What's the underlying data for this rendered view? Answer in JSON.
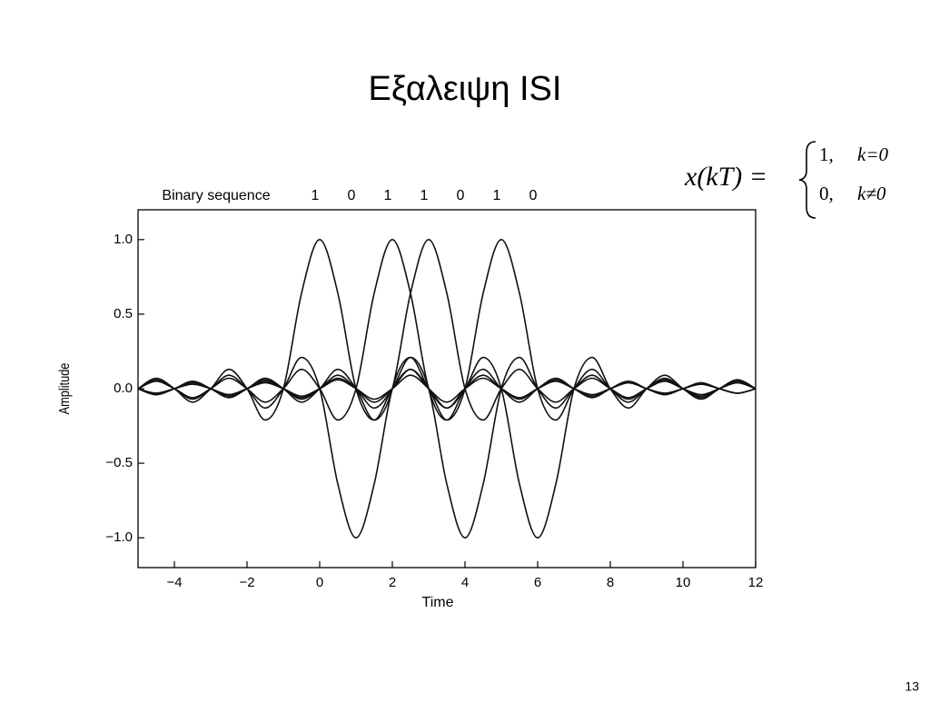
{
  "title": "Εξαλειψη ISI",
  "page_number": "13",
  "formula": {
    "lhs": "x(kT) =",
    "cases": [
      {
        "value": "1,",
        "condition": "k=0"
      },
      {
        "value": "0,",
        "condition": "k≠0"
      }
    ]
  },
  "chart_data": {
    "type": "line",
    "sequence_label": "Binary sequence",
    "bits": [
      1,
      0,
      1,
      1,
      0,
      1,
      0
    ],
    "x_label": "Time",
    "y_label": "Amplitude",
    "xlim": [
      -5,
      12
    ],
    "ylim": [
      -1.2,
      1.2
    ],
    "xticks": [
      {
        "value": -4,
        "label": "−4"
      },
      {
        "value": -2,
        "label": "−2"
      },
      0,
      2,
      4,
      6,
      8,
      10,
      12
    ],
    "yticks": [
      {
        "value": 1,
        "label": "1.0"
      },
      {
        "value": 0.5,
        "label": "0.5"
      },
      {
        "value": 0,
        "label": "0.0"
      },
      {
        "value": -0.5,
        "label": "−0.5"
      },
      {
        "value": -1,
        "label": "−1.0"
      }
    ],
    "grid": false,
    "color": "#111111",
    "x": [
      -5,
      -4.5,
      -4,
      -3.5,
      -3,
      -2.5,
      -2,
      -1.5,
      -1,
      -0.5,
      0,
      0.5,
      1,
      1.5,
      2,
      2.5,
      3,
      3.5,
      4,
      4.5,
      5,
      5.5,
      6,
      6.5,
      7,
      7.5,
      8,
      8.5,
      9,
      9.5,
      10,
      10.5,
      11,
      11.5,
      12
    ],
    "series": [
      {
        "values": [
          0,
          0.07,
          0,
          -0.09,
          0,
          0.13,
          0,
          -0.21,
          0,
          0.64,
          1,
          0.64,
          0,
          -0.21,
          0,
          0.13,
          0,
          -0.09,
          0,
          0.07,
          0,
          -0.06,
          0,
          0.05,
          0,
          -0.04,
          0,
          0.04,
          0,
          -0.03,
          0,
          0.03,
          0,
          -0.03,
          0
        ]
      },
      {
        "values": [
          0,
          0.06,
          0,
          -0.07,
          0,
          0.09,
          0,
          -0.13,
          0,
          0.21,
          0,
          -0.64,
          -1,
          -0.64,
          0,
          0.21,
          0,
          -0.13,
          0,
          0.09,
          0,
          -0.07,
          0,
          0.06,
          0,
          -0.05,
          0,
          0.04,
          0,
          -0.04,
          0,
          0.03,
          0,
          -0.03,
          0
        ]
      },
      {
        "values": [
          0,
          0.05,
          0,
          -0.06,
          0,
          0.07,
          0,
          -0.09,
          0,
          0.13,
          0,
          -0.21,
          0,
          0.64,
          1,
          0.64,
          0,
          -0.21,
          0,
          0.13,
          0,
          -0.09,
          0,
          0.07,
          0,
          -0.06,
          0,
          0.05,
          0,
          -0.04,
          0,
          0.04,
          0,
          -0.03,
          0
        ]
      },
      {
        "values": [
          0,
          -0.04,
          0,
          0.05,
          0,
          -0.06,
          0,
          0.07,
          0,
          -0.09,
          0,
          0.13,
          0,
          -0.21,
          0,
          0.64,
          1,
          0.64,
          0,
          -0.21,
          0,
          0.13,
          0,
          -0.09,
          0,
          0.07,
          0,
          -0.06,
          0,
          0.05,
          0,
          -0.04,
          0,
          0.04,
          0
        ]
      },
      {
        "values": [
          0,
          -0.04,
          0,
          0.04,
          0,
          -0.05,
          0,
          0.06,
          0,
          -0.07,
          0,
          0.09,
          0,
          -0.13,
          0,
          0.21,
          0,
          -0.64,
          -1,
          -0.64,
          0,
          0.21,
          0,
          -0.13,
          0,
          0.09,
          0,
          -0.07,
          0,
          0.06,
          0,
          -0.05,
          0,
          0.04,
          0
        ]
      },
      {
        "values": [
          0,
          -0.03,
          0,
          0.04,
          0,
          -0.04,
          0,
          0.05,
          0,
          -0.06,
          0,
          0.07,
          0,
          -0.09,
          0,
          0.13,
          0,
          -0.21,
          0,
          0.64,
          1,
          0.64,
          0,
          -0.21,
          0,
          0.13,
          0,
          -0.09,
          0,
          0.07,
          0,
          -0.06,
          0,
          0.05,
          0
        ]
      },
      {
        "values": [
          0,
          -0.03,
          0,
          0.03,
          0,
          -0.04,
          0,
          0.04,
          0,
          -0.05,
          0,
          0.06,
          0,
          -0.07,
          0,
          0.09,
          0,
          -0.13,
          0,
          0.21,
          0,
          -0.64,
          -1,
          -0.64,
          0,
          0.21,
          0,
          -0.13,
          0,
          0.09,
          0,
          -0.07,
          0,
          0.06,
          0
        ]
      }
    ]
  }
}
